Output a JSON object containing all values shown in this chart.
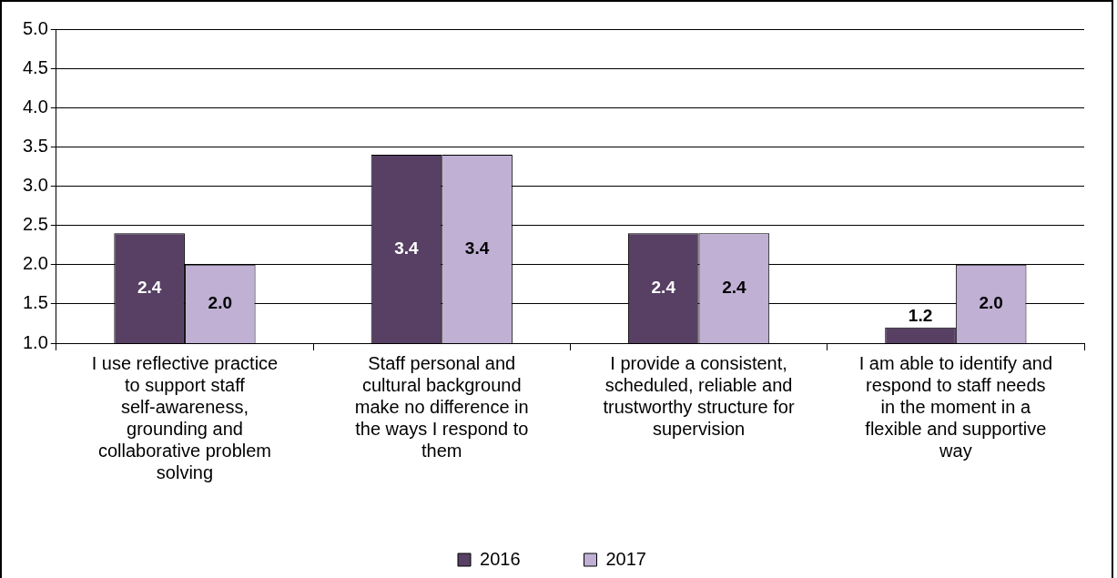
{
  "chart_data": {
    "type": "bar",
    "categories": [
      "I use reflective practice to support staff self-awareness, grounding and collaborative problem solving",
      "Staff personal and cultural background make no difference in the ways I respond to them",
      "I provide a consistent, scheduled, reliable and trustworthy structure for supervision",
      "I am able to identify and respond to staff needs in the moment in a flexible and supportive way"
    ],
    "series": [
      {
        "name": "2016",
        "color": "#574064",
        "values": [
          2.4,
          3.4,
          2.4,
          1.2
        ],
        "value_labels": [
          "2.4",
          "3.4",
          "2.4",
          "1.2"
        ]
      },
      {
        "name": "2017",
        "color": "#c0b0d4",
        "values": [
          2.0,
          3.4,
          2.4,
          2.0
        ],
        "value_labels": [
          "2.0",
          "3.4",
          "2.4",
          "2.0"
        ]
      }
    ],
    "ylim": [
      1.0,
      5.0
    ],
    "yticks": [
      {
        "value": 1.0,
        "label": "1.0"
      },
      {
        "value": 1.5,
        "label": "1.5"
      },
      {
        "value": 2.0,
        "label": "2.0"
      },
      {
        "value": 2.5,
        "label": "2.5"
      },
      {
        "value": 3.0,
        "label": "3.0"
      },
      {
        "value": 3.5,
        "label": "3.5"
      },
      {
        "value": 4.0,
        "label": "4.0"
      },
      {
        "value": 4.5,
        "label": "4.5"
      },
      {
        "value": 5.0,
        "label": "5.0"
      }
    ],
    "grid": "y",
    "legend": "bottom"
  }
}
